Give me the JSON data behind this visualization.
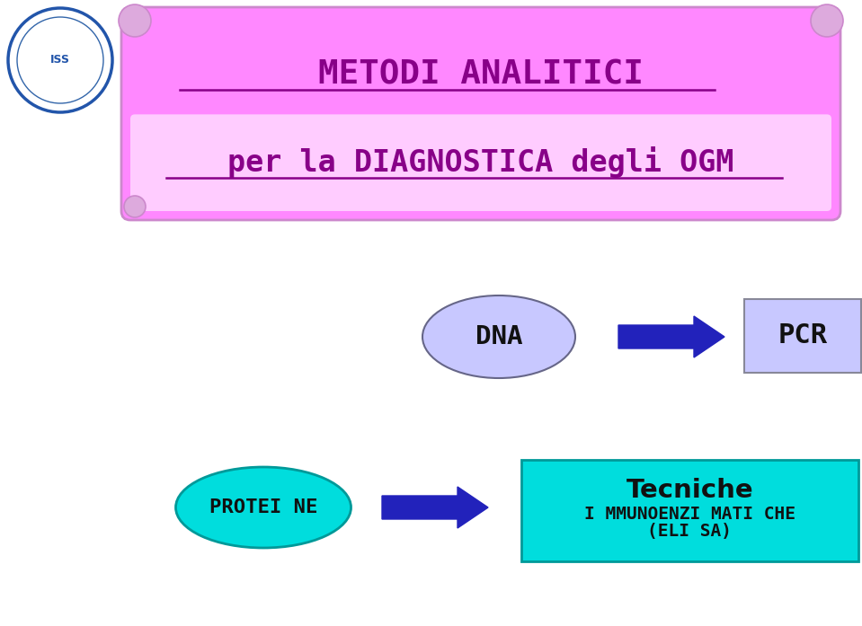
{
  "bg_color": "#ffffff",
  "title_line1": "METODI ANALITICI",
  "title_line2": "per la DIAGNOSTICA degli OGM",
  "scroll_fill_top": "#ff88ff",
  "scroll_fill_bot": "#ffccff",
  "scroll_border": "#cc88cc",
  "dna_label": "DNA",
  "dna_fill": "#c8c8ff",
  "dna_border": "#666688",
  "pcr_label": "PCR",
  "pcr_fill": "#c8c8ff",
  "pcr_border": "#888899",
  "proteine_label": "PROTEI NE",
  "proteine_fill": "#00dddd",
  "proteine_border": "#009999",
  "tecniche_title": "Tecniche",
  "tecniche_line2": "I MMUNOENZI MATI CHE",
  "tecniche_line3": "(ELI SA)",
  "tecniche_fill": "#00dddd",
  "tecniche_border": "#009999",
  "arrow_color": "#2222bb",
  "text_color": "#111111",
  "title_text_color": "#880088"
}
